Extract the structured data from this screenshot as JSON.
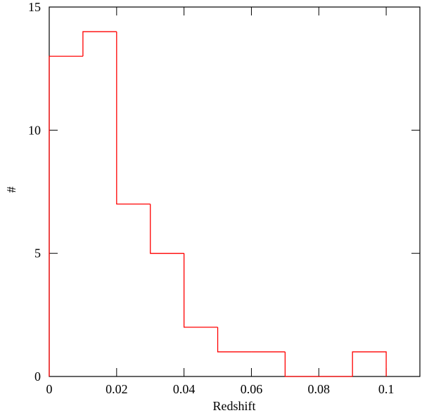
{
  "chart_data": {
    "type": "histogram",
    "xlabel": "Redshift",
    "ylabel": "#",
    "bins": [
      0,
      0.01,
      0.02,
      0.03,
      0.04,
      0.05,
      0.06,
      0.07,
      0.08,
      0.09,
      0.1
    ],
    "counts": [
      13,
      14,
      7,
      5,
      2,
      1,
      1,
      0,
      0,
      1
    ],
    "color": "#ff0000",
    "xlim": [
      0,
      0.11
    ],
    "ylim": [
      0,
      15
    ],
    "xticks": [
      0,
      0.02,
      0.04,
      0.06,
      0.08,
      0.1
    ],
    "yticks": [
      0,
      5,
      10,
      15
    ]
  }
}
